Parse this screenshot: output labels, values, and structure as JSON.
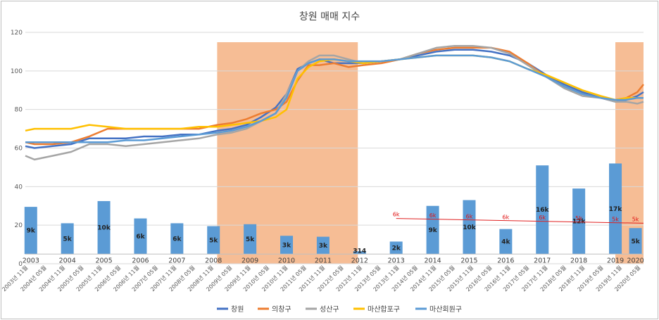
{
  "chart_data": {
    "type": "line+bar",
    "title": "창원 매매 지수",
    "ylim": [
      0,
      120
    ],
    "yticks": [
      0,
      20,
      40,
      60,
      80,
      100,
      120
    ],
    "grid": true,
    "legend_position": "bottom",
    "x_tick_labels": [
      "2003년 11월",
      "2004년 05월",
      "2004년 11월",
      "2005년 05월",
      "2005년 11월",
      "2006년 05월",
      "2006년 11월",
      "2007년 05월",
      "2007년 11월",
      "2008년 05월",
      "2008년 11월",
      "2009년 05월",
      "2009년 11월",
      "2010년 05월",
      "2010년 11월",
      "2011년 05월",
      "2011년 11월",
      "2012년 05월",
      "2012년 11월",
      "2013년 05월",
      "2013년 11월",
      "2014년 05월",
      "2014년 11월",
      "2015년 05월",
      "2015년 11월",
      "2016년 05월",
      "2016년 11월",
      "2017년 05월",
      "2017년 11월",
      "2018년 05월",
      "2018년 11월",
      "2019년 05월",
      "2019년 11월",
      "2020년 05월"
    ],
    "x_range": [
      2003.75,
      2020.67
    ],
    "series": [
      {
        "name": "창원",
        "color": "#4472c4",
        "x": [
          2003.75,
          2004.0,
          2004.5,
          2005.0,
          2005.5,
          2006.0,
          2006.5,
          2007.0,
          2007.5,
          2008.0,
          2008.5,
          2009.0,
          2009.4,
          2009.8,
          2010.2,
          2010.6,
          2010.9,
          2011.2,
          2011.5,
          2011.8,
          2012.2,
          2012.6,
          2013.0,
          2013.5,
          2014.0,
          2014.5,
          2015.0,
          2015.5,
          2016.0,
          2016.5,
          2017.0,
          2017.5,
          2018.0,
          2018.5,
          2019.0,
          2019.5,
          2019.9,
          2020.2,
          2020.5,
          2020.67
        ],
        "y": [
          61,
          60,
          61,
          62,
          65,
          65,
          65,
          66,
          66,
          67,
          67,
          69,
          70,
          72,
          76,
          81,
          88,
          101,
          104,
          106,
          104,
          104,
          104,
          105,
          106,
          108,
          110,
          111,
          111,
          110,
          108,
          104,
          98,
          93,
          89,
          86,
          84,
          85,
          87,
          89
        ]
      },
      {
        "name": "의창구",
        "color": "#ed7d31",
        "x": [
          2003.75,
          2004.0,
          2004.5,
          2005.0,
          2005.5,
          2006.0,
          2006.5,
          2007.0,
          2007.5,
          2008.0,
          2008.5,
          2009.0,
          2009.4,
          2009.8,
          2010.2,
          2010.6,
          2010.9,
          2011.2,
          2011.5,
          2011.8,
          2012.2,
          2012.6,
          2013.0,
          2013.5,
          2014.0,
          2014.5,
          2015.0,
          2015.5,
          2016.0,
          2016.5,
          2017.0,
          2017.5,
          2018.0,
          2018.5,
          2019.0,
          2019.5,
          2019.9,
          2020.2,
          2020.5,
          2020.67
        ],
        "y": [
          63,
          62,
          62,
          63,
          66,
          70,
          70,
          70,
          70,
          70,
          70,
          72,
          73,
          75,
          78,
          80,
          84,
          95,
          103,
          103,
          104,
          102,
          103,
          104,
          106,
          109,
          111,
          112,
          112,
          112,
          110,
          104,
          97,
          92,
          88,
          86,
          85,
          86,
          89,
          93
        ]
      },
      {
        "name": "성산구",
        "color": "#a5a5a5",
        "x": [
          2003.75,
          2004.0,
          2004.5,
          2005.0,
          2005.5,
          2006.0,
          2006.5,
          2007.0,
          2007.5,
          2008.0,
          2008.5,
          2009.0,
          2009.4,
          2009.8,
          2010.2,
          2010.6,
          2010.9,
          2011.2,
          2011.5,
          2011.8,
          2012.2,
          2012.6,
          2013.0,
          2013.5,
          2014.0,
          2014.5,
          2015.0,
          2015.5,
          2016.0,
          2016.5,
          2017.0,
          2017.5,
          2018.0,
          2018.5,
          2019.0,
          2019.5,
          2019.9,
          2020.2,
          2020.5,
          2020.67
        ],
        "y": [
          56,
          54,
          56,
          58,
          62,
          62,
          61,
          62,
          63,
          64,
          65,
          67,
          68,
          70,
          74,
          78,
          88,
          100,
          105,
          108,
          108,
          106,
          104,
          105,
          106,
          109,
          112,
          113,
          113,
          112,
          109,
          103,
          97,
          91,
          87,
          86,
          84,
          84,
          83,
          84
        ]
      },
      {
        "name": "마산합포구",
        "color": "#ffc000",
        "x": [
          2003.75,
          2004.0,
          2004.5,
          2005.0,
          2005.5,
          2006.0,
          2006.5,
          2007.0,
          2007.5,
          2008.0,
          2008.5,
          2009.0,
          2009.4,
          2009.8,
          2010.2,
          2010.6,
          2010.9,
          2011.2,
          2011.5,
          2011.8,
          2012.2,
          2012.6,
          2013.0,
          2013.5,
          2014.0,
          2014.5,
          2015.0,
          2015.5,
          2016.0,
          2016.5,
          2017.0,
          2017.5,
          2018.0,
          2018.5,
          2019.0,
          2019.5,
          2019.9,
          2020.2,
          2020.5,
          2020.67
        ],
        "y": [
          69,
          70,
          70,
          70,
          72,
          71,
          70,
          70,
          70,
          70,
          71,
          71,
          72,
          73,
          74,
          76,
          80,
          96,
          102,
          105,
          106,
          105,
          104,
          105,
          106,
          107,
          108,
          108,
          108,
          107,
          105,
          101,
          98,
          94,
          90,
          87,
          85,
          86,
          86,
          86
        ]
      },
      {
        "name": "마산회원구",
        "color": "#5b9bd5",
        "x": [
          2003.75,
          2004.0,
          2004.5,
          2005.0,
          2005.5,
          2006.0,
          2006.5,
          2007.0,
          2007.5,
          2008.0,
          2008.5,
          2009.0,
          2009.4,
          2009.8,
          2010.2,
          2010.6,
          2010.9,
          2011.2,
          2011.5,
          2011.8,
          2012.2,
          2012.6,
          2013.0,
          2013.5,
          2014.0,
          2014.5,
          2015.0,
          2015.5,
          2016.0,
          2016.5,
          2017.0,
          2017.5,
          2018.0,
          2018.5,
          2019.0,
          2019.5,
          2019.9,
          2020.2,
          2020.5,
          2020.67
        ],
        "y": [
          63,
          63,
          63,
          63,
          63,
          63,
          64,
          64,
          65,
          66,
          67,
          68,
          69,
          71,
          74,
          78,
          86,
          100,
          104,
          106,
          106,
          105,
          105,
          105,
          106,
          107,
          108,
          108,
          108,
          107,
          105,
          101,
          97,
          92,
          88,
          86,
          85,
          85,
          86,
          86
        ]
      }
    ],
    "bars": {
      "color": "#5b9bd5",
      "categories": [
        "2003",
        "2004",
        "2005",
        "2006",
        "2007",
        "2008",
        "2009",
        "2010",
        "2011",
        "2012",
        "2013",
        "2014",
        "2015",
        "2016",
        "2017",
        "2018",
        "2019",
        "2020"
      ],
      "x": [
        2003.9,
        2004.9,
        2005.9,
        2006.9,
        2007.9,
        2008.9,
        2009.9,
        2010.9,
        2011.9,
        2012.9,
        2013.9,
        2014.9,
        2015.9,
        2016.9,
        2017.9,
        2018.9,
        2019.9,
        2020.45
      ],
      "values": [
        29.5,
        21,
        32.5,
        23.5,
        21,
        19.5,
        20.5,
        14.5,
        14,
        6.5,
        11.5,
        30,
        33,
        18,
        51,
        39,
        52,
        18.5
      ],
      "labels": [
        "9k",
        "5k",
        "10k",
        "6k",
        "6k",
        "5k",
        "5k",
        "3k",
        "3k",
        "314",
        "2k",
        "9k",
        "10k",
        "4k",
        "16k",
        "12k",
        "17k",
        "5k"
      ]
    },
    "shaded_periods": [
      [
        2009.0,
        2012.85
      ],
      [
        2019.9,
        2020.67
      ]
    ],
    "shaded_color": "#f4b183",
    "red_annotations": {
      "labels": [
        "6k",
        "6k",
        "6k",
        "6k",
        "6k",
        "5k",
        "5k",
        "5k"
      ],
      "x": [
        2013.9,
        2014.9,
        2015.9,
        2016.9,
        2017.9,
        2018.9,
        2019.9,
        2020.45
      ],
      "values": [
        23.5,
        23,
        22.5,
        22,
        21.8,
        21.5,
        21,
        21
      ],
      "trend": {
        "x": [
          2013.9,
          2020.67
        ],
        "y": [
          23.5,
          21
        ]
      }
    }
  }
}
